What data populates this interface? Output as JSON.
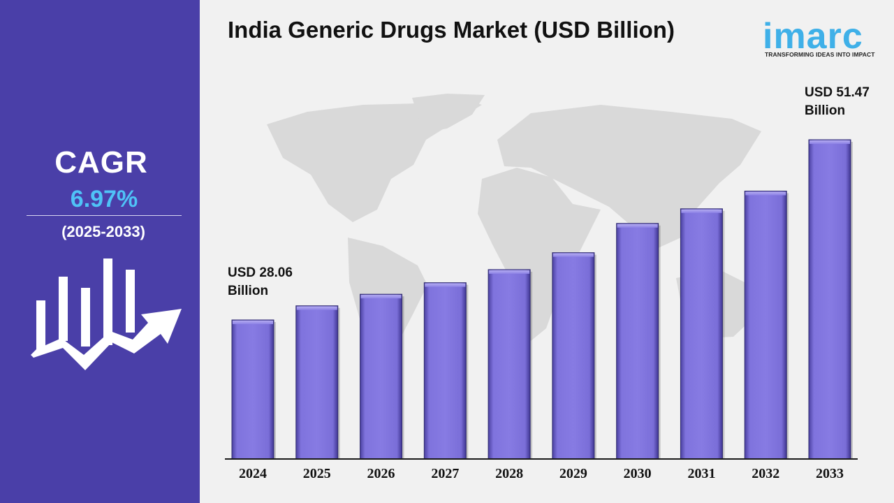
{
  "title": "India Generic Drugs Market (USD Billion)",
  "brand": {
    "name": "imarc",
    "tagline": "TRANSFORMING IDEAS INTO IMPACT",
    "color": "#3fb0e8"
  },
  "sidebar": {
    "cagr_label": "CAGR",
    "cagr_value": "6.97%",
    "cagr_period": "(2025-2033)",
    "icon": "growth-chart-arrow-icon",
    "background": "#4a3fa8",
    "value_color": "#4fc3f7"
  },
  "chart_data": {
    "type": "bar",
    "title": "India Generic Drugs Market (USD Billion)",
    "categories": [
      "2024",
      "2025",
      "2026",
      "2027",
      "2028",
      "2029",
      "2030",
      "2031",
      "2032",
      "2033"
    ],
    "values": [
      28.06,
      29.9,
      31.4,
      32.9,
      34.6,
      36.8,
      40.6,
      42.5,
      44.8,
      51.47
    ],
    "ylim": [
      10,
      60
    ],
    "annotations": [
      {
        "category": "2024",
        "line1": "USD 28.06",
        "line2": "Billion"
      },
      {
        "category": "2033",
        "line1": "USD 51.47",
        "line2": "Billion"
      }
    ],
    "grid": false,
    "bar_color": "#7b6fd9"
  }
}
